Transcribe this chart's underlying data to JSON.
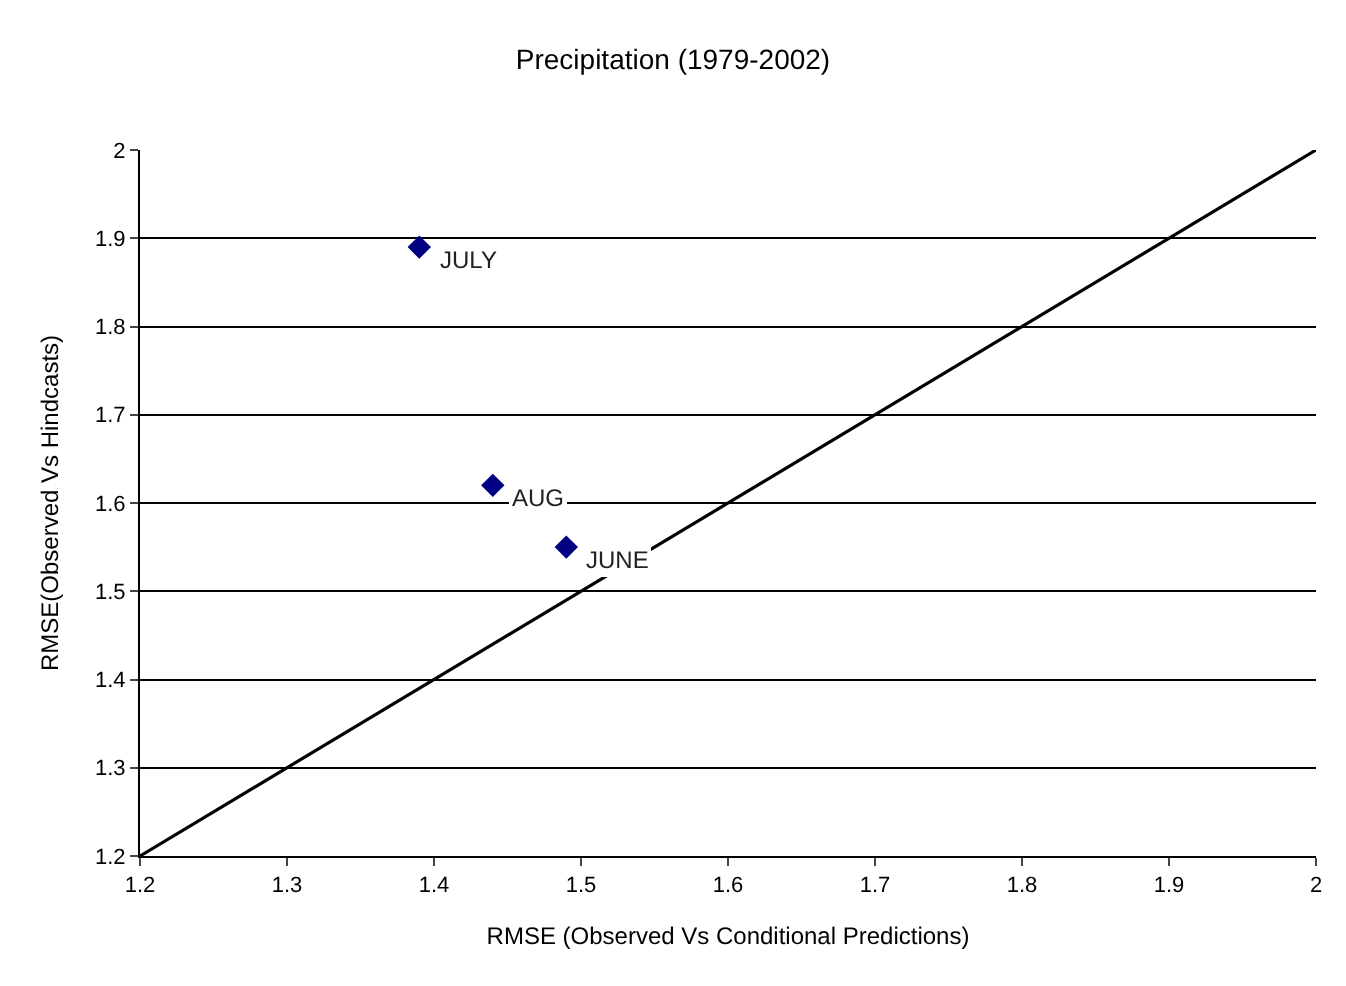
{
  "chart_data": {
    "type": "scatter",
    "title": "Precipitation (1979-2002)",
    "xlabel": "RMSE (Observed Vs Conditional Predictions)",
    "ylabel": "RMSE(Observed Vs Hindcasts)",
    "x": [
      1.39,
      1.44,
      1.49
    ],
    "series": [
      {
        "color": "#000080",
        "values": [
          1.89,
          1.62,
          1.55
        ],
        "marker": "diamond"
      },
      {
        "type": "line",
        "color": "#000000",
        "x": [
          1.2,
          2.0
        ],
        "values": [
          1.2,
          2.0
        ],
        "marker": "none",
        "line_style": "solid"
      }
    ],
    "annotations": [
      {
        "text": "JULY",
        "x": 1.39,
        "y": 1.89
      },
      {
        "text": "AUG",
        "x": 1.44,
        "y": 1.62
      },
      {
        "text": "JUNE",
        "x": 1.49,
        "y": 1.55
      }
    ],
    "xlim": [
      1.2,
      2.0
    ],
    "xticks": [
      1.2,
      1.3,
      1.4,
      1.5,
      1.6,
      1.7,
      1.8,
      1.9,
      2
    ],
    "ylim": [
      1.2,
      2.0
    ],
    "yticks": [
      1.2,
      1.3,
      1.4,
      1.5,
      1.6,
      1.7,
      1.8,
      1.9,
      2
    ],
    "grid": "y"
  }
}
